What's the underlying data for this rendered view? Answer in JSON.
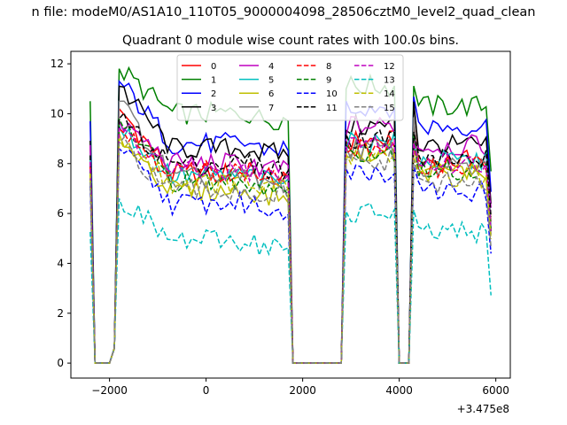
{
  "figure": {
    "suptitle": "n file: modeM0/AS1A10_110T05_9000004098_28506cztM0_level2_quad_clean",
    "title": "Quadrant 0 module wise count rates with 100.0s bins.",
    "offset_text": "+3.475e8"
  },
  "chart_data": {
    "type": "line",
    "title": "Quadrant 0 module wise count rates with 100.0s bins.",
    "xlabel": "",
    "ylabel": "",
    "x_offset": 347500000,
    "xlim": [
      -2800,
      6300
    ],
    "ylim": [
      -0.6,
      12.5
    ],
    "xticks": [
      -2000,
      0,
      2000,
      4000,
      6000
    ],
    "xtick_labels": [
      "−2000",
      "0",
      "2000",
      "4000",
      "6000"
    ],
    "yticks": [
      0,
      2,
      4,
      6,
      8,
      10,
      12
    ],
    "ytick_labels": [
      "0",
      "2",
      "4",
      "6",
      "8",
      "10",
      "12"
    ],
    "grid": false,
    "legend": {
      "placement": "upper center",
      "columns": 4
    },
    "gaps_note_x": [
      [
        -2250,
        -1950
      ],
      [
        1750,
        2850
      ],
      [
        3950,
        4300
      ]
    ],
    "series": [
      {
        "name": "0",
        "color": "#ff0000",
        "style": "solid",
        "base": 7.6,
        "peak": 10.2,
        "early": 8.6
      },
      {
        "name": "1",
        "color": "#008000",
        "style": "solid",
        "base": 10.0,
        "peak": 11.8,
        "early": 10.8
      },
      {
        "name": "2",
        "color": "#0000ff",
        "style": "solid",
        "base": 8.8,
        "peak": 11.3,
        "early": 10.0
      },
      {
        "name": "3",
        "color": "#000000",
        "style": "solid",
        "base": 8.6,
        "peak": 11.1,
        "early": 9.2
      },
      {
        "name": "4",
        "color": "#bf00bf",
        "style": "solid",
        "base": 8.0,
        "peak": 9.7,
        "early": 9.2
      },
      {
        "name": "5",
        "color": "#00bfbf",
        "style": "solid",
        "base": 7.5,
        "peak": 9.5,
        "early": 8.6
      },
      {
        "name": "6",
        "color": "#bfbf00",
        "style": "solid",
        "base": 6.9,
        "peak": 9.2,
        "early": 8.2
      },
      {
        "name": "7",
        "color": "#808080",
        "style": "solid",
        "base": 7.4,
        "peak": 10.5,
        "early": 8.3
      },
      {
        "name": "8",
        "color": "#ff0000",
        "style": "dashed",
        "base": 7.7,
        "peak": 9.4,
        "early": 8.4
      },
      {
        "name": "9",
        "color": "#008000",
        "style": "dashed",
        "base": 7.3,
        "peak": 9.8,
        "early": 8.2
      },
      {
        "name": "10",
        "color": "#0000ff",
        "style": "dashed",
        "base": 6.4,
        "peak": 8.6,
        "early": 7.4
      },
      {
        "name": "11",
        "color": "#000000",
        "style": "dashed",
        "base": 8.0,
        "peak": 9.8,
        "early": 8.7
      },
      {
        "name": "12",
        "color": "#bf00bf",
        "style": "dashed",
        "base": 7.7,
        "peak": 9.4,
        "early": 8.5
      },
      {
        "name": "13",
        "color": "#00bfbf",
        "style": "dashed",
        "base": 4.9,
        "peak": 6.6,
        "early": 5.7
      },
      {
        "name": "14",
        "color": "#bfbf00",
        "style": "dashed",
        "base": 7.2,
        "peak": 9.0,
        "early": 8.0
      },
      {
        "name": "15",
        "color": "#808080",
        "style": "dashed",
        "base": 6.9,
        "peak": 8.8,
        "early": 7.7
      }
    ]
  }
}
